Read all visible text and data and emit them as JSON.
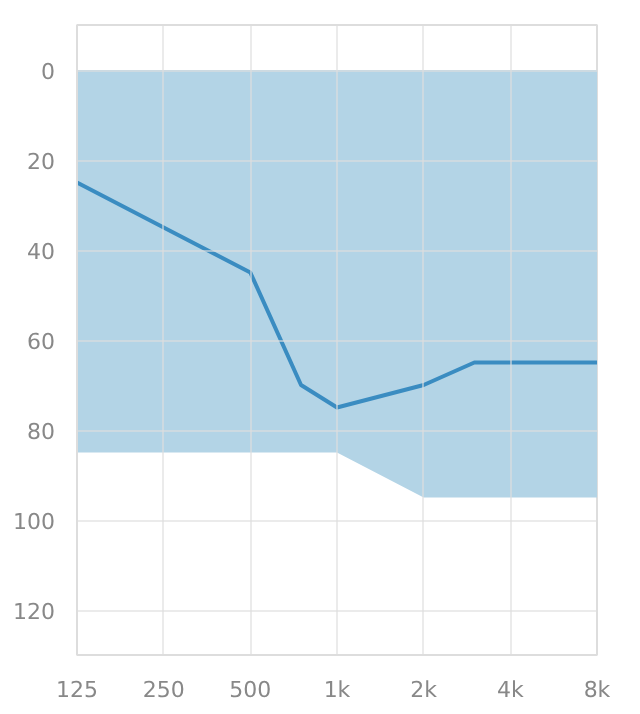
{
  "chart_data": {
    "type": "line",
    "log": "x",
    "grid": true,
    "xlim": [
      125,
      8000
    ],
    "ylim": [
      130,
      -10
    ],
    "xticks": [
      125,
      250,
      500,
      {
        "value": 1000,
        "label": "1k"
      },
      {
        "value": 2000,
        "label": "2k"
      },
      {
        "value": 4000,
        "label": "4k"
      },
      {
        "value": 8000,
        "label": "8k"
      }
    ],
    "yticks": [
      0,
      20,
      40,
      60,
      80,
      100,
      120
    ],
    "series": [
      {
        "type": "area",
        "color": "#b3d4e6",
        "x": [
          125,
          250,
          500,
          1000,
          2000,
          4000,
          8000
        ],
        "values": [
          85,
          85,
          85,
          85,
          95,
          95,
          95
        ]
      },
      {
        "color": "#3a8cc1",
        "x": [
          125,
          250,
          500,
          750,
          1000,
          2000,
          3000,
          4000,
          8000
        ],
        "values": [
          25,
          35,
          45,
          70,
          75,
          70,
          65,
          65,
          65
        ]
      }
    ]
  }
}
